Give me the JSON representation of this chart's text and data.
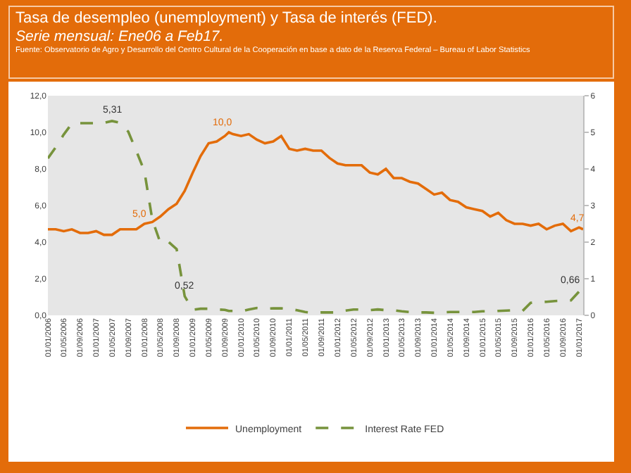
{
  "chart_data": {
    "type": "line",
    "title": "Tasa de desempleo (unemployment) y Tasa de interés (FED).",
    "subtitle": "Serie mensual: Ene06 a Feb17.",
    "annotations": [
      "Fuente: Observatorio de Agro y Desarrollo del Centro Cultural de la Cooperación en base a dato de la Reserva Federal – Bureau of Labor Statistics",
      {
        "text": "5,0",
        "x": "2008-01",
        "y": 5.0
      },
      {
        "text": "10,0",
        "x": "2009-10",
        "y": 10.0
      },
      {
        "text": "4,7",
        "x": "2017-02",
        "y": 4.7
      }
    ],
    "x": [
      "2006-01",
      "2006-03",
      "2006-05",
      "2006-07",
      "2006-09",
      "2006-11",
      "2007-01",
      "2007-03",
      "2007-05",
      "2007-07",
      "2007-09",
      "2007-11",
      "2008-01",
      "2008-03",
      "2008-05",
      "2008-07",
      "2008-09",
      "2008-11",
      "2009-01",
      "2009-03",
      "2009-05",
      "2009-07",
      "2009-09",
      "2009-10",
      "2009-11",
      "2010-01",
      "2010-03",
      "2010-05",
      "2010-07",
      "2010-09",
      "2010-11",
      "2011-01",
      "2011-03",
      "2011-05",
      "2011-07",
      "2011-09",
      "2011-11",
      "2012-01",
      "2012-03",
      "2012-05",
      "2012-07",
      "2012-09",
      "2012-11",
      "2013-01",
      "2013-03",
      "2013-05",
      "2013-07",
      "2013-09",
      "2013-11",
      "2014-01",
      "2014-03",
      "2014-05",
      "2014-07",
      "2014-09",
      "2014-11",
      "2015-01",
      "2015-03",
      "2015-05",
      "2015-07",
      "2015-09",
      "2015-11",
      "2016-01",
      "2016-03",
      "2016-05",
      "2016-07",
      "2016-09",
      "2016-11",
      "2017-01",
      "2017-02"
    ],
    "series": [
      {
        "name": "Unemployment",
        "color": "#e36c0a",
        "line_style": "solid",
        "values": [
          4.7,
          4.7,
          4.6,
          4.7,
          4.5,
          4.5,
          4.6,
          4.4,
          4.4,
          4.7,
          4.7,
          4.7,
          5.0,
          5.1,
          5.4,
          5.8,
          6.1,
          6.8,
          7.8,
          8.7,
          9.4,
          9.5,
          9.8,
          10.0,
          9.9,
          9.8,
          9.9,
          9.6,
          9.4,
          9.5,
          9.8,
          9.1,
          9.0,
          9.1,
          9.0,
          9.0,
          8.6,
          8.3,
          8.2,
          8.2,
          8.2,
          7.8,
          7.7,
          8.0,
          7.5,
          7.5,
          7.3,
          7.2,
          6.9,
          6.6,
          6.7,
          6.3,
          6.2,
          5.9,
          5.8,
          5.7,
          5.4,
          5.6,
          5.2,
          5.0,
          5.0,
          4.9,
          5.0,
          4.7,
          4.9,
          5.0,
          4.6,
          4.8,
          4.7
        ]
      },
      {
        "name": "Interest Rate FED",
        "color": "#77933c",
        "line_style": "dashed",
        "axis": "y2",
        "values": [
          4.29,
          4.59,
          4.94,
          5.24,
          5.25,
          5.25,
          5.25,
          5.26,
          5.31,
          5.26,
          5.02,
          4.49,
          3.94,
          2.61,
          1.98,
          2.01,
          1.81,
          0.52,
          0.15,
          0.18,
          0.18,
          0.16,
          0.15,
          0.12,
          0.12,
          0.11,
          0.16,
          0.2,
          0.18,
          0.19,
          0.19,
          0.17,
          0.14,
          0.09,
          0.07,
          0.08,
          0.08,
          0.08,
          0.13,
          0.16,
          0.16,
          0.14,
          0.16,
          0.14,
          0.14,
          0.11,
          0.09,
          0.08,
          0.08,
          0.07,
          0.08,
          0.09,
          0.09,
          0.09,
          0.09,
          0.11,
          0.11,
          0.12,
          0.13,
          0.14,
          0.12,
          0.34,
          0.36,
          0.37,
          0.39,
          0.4,
          0.41,
          0.65,
          0.66
        ],
        "value_labels": [
          null,
          null,
          null,
          null,
          null,
          null,
          null,
          null,
          "5,31",
          null,
          null,
          null,
          null,
          null,
          null,
          null,
          null,
          "0,52",
          null,
          null,
          null,
          null,
          null,
          null,
          null,
          null,
          null,
          null,
          null,
          null,
          null,
          null,
          null,
          null,
          null,
          null,
          null,
          null,
          null,
          null,
          null,
          null,
          null,
          null,
          null,
          null,
          null,
          null,
          null,
          null,
          null,
          null,
          null,
          null,
          null,
          null,
          null,
          null,
          null,
          null,
          null,
          null,
          null,
          null,
          null,
          null,
          null,
          null,
          "0,66"
        ]
      }
    ],
    "ylim": [
      0,
      12
    ],
    "yticks": [
      {
        "value": 0,
        "label": "0,0"
      },
      {
        "value": 2,
        "label": "2,0"
      },
      {
        "value": 4,
        "label": "4,0"
      },
      {
        "value": 6,
        "label": "6,0"
      },
      {
        "value": 8,
        "label": "8,0"
      },
      {
        "value": 10,
        "label": "10,0"
      },
      {
        "value": 12,
        "label": "12,0"
      }
    ],
    "y2lim": [
      0,
      6
    ],
    "y2ticks": [
      0,
      1,
      2,
      3,
      4,
      5,
      6
    ],
    "xlim": [
      "2006-01",
      "2017-02"
    ],
    "xticks": [
      {
        "value": "2006-01",
        "label": "01/01/2006"
      },
      {
        "value": "2006-05",
        "label": "01/05/2006"
      },
      {
        "value": "2006-09",
        "label": "01/09/2006"
      },
      {
        "value": "2007-01",
        "label": "01/01/2007"
      },
      {
        "value": "2007-05",
        "label": "01/05/2007"
      },
      {
        "value": "2007-09",
        "label": "01/09/2007"
      },
      {
        "value": "2008-01",
        "label": "01/01/2008"
      },
      {
        "value": "2008-05",
        "label": "01/05/2008"
      },
      {
        "value": "2008-09",
        "label": "01/09/2008"
      },
      {
        "value": "2009-01",
        "label": "01/01/2009"
      },
      {
        "value": "2009-05",
        "label": "01/05/2009"
      },
      {
        "value": "2009-09",
        "label": "01/09/2009"
      },
      {
        "value": "2010-01",
        "label": "01/01/2010"
      },
      {
        "value": "2010-05",
        "label": "01/05/2010"
      },
      {
        "value": "2010-09",
        "label": "01/09/2010"
      },
      {
        "value": "2011-01",
        "label": "01/01/2011"
      },
      {
        "value": "2011-05",
        "label": "01/05/2011"
      },
      {
        "value": "2011-09",
        "label": "01/09/2011"
      },
      {
        "value": "2012-01",
        "label": "01/01/2012"
      },
      {
        "value": "2012-05",
        "label": "01/05/2012"
      },
      {
        "value": "2012-09",
        "label": "01/09/2012"
      },
      {
        "value": "2013-01",
        "label": "01/01/2013"
      },
      {
        "value": "2013-05",
        "label": "01/05/2013"
      },
      {
        "value": "2013-09",
        "label": "01/09/2013"
      },
      {
        "value": "2014-01",
        "label": "01/01/2014"
      },
      {
        "value": "2014-05",
        "label": "01/05/2014"
      },
      {
        "value": "2014-09",
        "label": "01/09/2014"
      },
      {
        "value": "2015-01",
        "label": "01/01/2015"
      },
      {
        "value": "2015-05",
        "label": "01/05/2015"
      },
      {
        "value": "2015-09",
        "label": "01/09/2015"
      },
      {
        "value": "2016-01",
        "label": "01/01/2016"
      },
      {
        "value": "2016-05",
        "label": "01/05/2016"
      },
      {
        "value": "2016-09",
        "label": "01/09/2016"
      },
      {
        "value": "2017-01",
        "label": "01/01/2017"
      }
    ],
    "legend": "bottom",
    "marker": "none"
  }
}
